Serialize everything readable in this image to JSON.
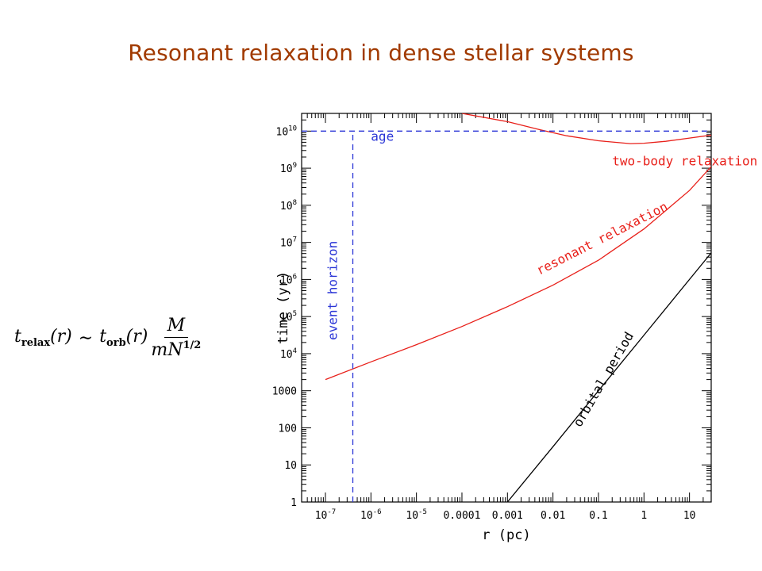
{
  "slide": {
    "title": "Resonant relaxation in dense stellar systems"
  },
  "formula": {
    "lhs_var": "t",
    "lhs_sub": "relax",
    "lhs_arg": "(r)",
    "relation": "∼",
    "rhs_var": "t",
    "rhs_sub": "orb",
    "rhs_arg": "(r)",
    "numerator": "M",
    "denominator": "mN",
    "denominator_sup": "1/2"
  },
  "chart_data": {
    "type": "line",
    "xlabel": "r (pc)",
    "ylabel": "time (yr)",
    "xscale": "log",
    "yscale": "log",
    "xlim": [
      3e-08,
      30
    ],
    "ylim": [
      1,
      30000000000.0
    ],
    "x_ticks": [
      {
        "value": 1e-07,
        "label": "10",
        "exp": "-7"
      },
      {
        "value": 1e-06,
        "label": "10",
        "exp": "-6"
      },
      {
        "value": 1e-05,
        "label": "10",
        "exp": "-5"
      },
      {
        "value": 0.0001,
        "label": "0.0001",
        "exp": ""
      },
      {
        "value": 0.001,
        "label": "0.001",
        "exp": ""
      },
      {
        "value": 0.01,
        "label": "0.01",
        "exp": ""
      },
      {
        "value": 0.1,
        "label": "0.1",
        "exp": ""
      },
      {
        "value": 1,
        "label": "1",
        "exp": ""
      },
      {
        "value": 10,
        "label": "10",
        "exp": ""
      }
    ],
    "y_ticks": [
      {
        "value": 1,
        "label": "1",
        "exp": ""
      },
      {
        "value": 10,
        "label": "10",
        "exp": ""
      },
      {
        "value": 100,
        "label": "100",
        "exp": ""
      },
      {
        "value": 1000,
        "label": "1000",
        "exp": ""
      },
      {
        "value": 10000.0,
        "label": "10",
        "exp": "4"
      },
      {
        "value": 100000.0,
        "label": "10",
        "exp": "5"
      },
      {
        "value": 1000000.0,
        "label": "10",
        "exp": "6"
      },
      {
        "value": 10000000.0,
        "label": "10",
        "exp": "7"
      },
      {
        "value": 100000000.0,
        "label": "10",
        "exp": "8"
      },
      {
        "value": 1000000000.0,
        "label": "10",
        "exp": "9"
      },
      {
        "value": 10000000000.0,
        "label": "10",
        "exp": "10"
      }
    ],
    "series": [
      {
        "name": "two-body relaxation",
        "color": "#e8201a",
        "dash": "solid",
        "x": [
          0.0001,
          0.001,
          0.005,
          0.02,
          0.1,
          0.5,
          1,
          3,
          10,
          30
        ],
        "y": [
          30000000000.0,
          18000000000.0,
          11000000000.0,
          7500000000.0,
          5500000000.0,
          4600000000.0,
          4700000000.0,
          5300000000.0,
          6500000000.0,
          7800000000.0
        ]
      },
      {
        "name": "resonant relaxation",
        "color": "#e8201a",
        "dash": "solid",
        "x": [
          1e-07,
          1e-06,
          1e-05,
          0.0001,
          0.001,
          0.01,
          0.1,
          1,
          10,
          30
        ],
        "y": [
          2000,
          6000,
          17500,
          54000,
          185000,
          700000,
          3300000,
          23000000,
          250000000,
          1100000000.0
        ]
      },
      {
        "name": "orbital period",
        "color": "#000000",
        "dash": "solid",
        "x": [
          0.001,
          0.01,
          0.1,
          1,
          10,
          30
        ],
        "y": [
          1,
          31,
          1000,
          31600,
          1000000,
          5200000
        ]
      },
      {
        "name": "age",
        "color": "#2a35d6",
        "dash": "dashed",
        "x": [
          3e-08,
          30
        ],
        "y": [
          10000000000.0,
          10000000000.0
        ]
      },
      {
        "name": "event horizon",
        "color": "#2a35d6",
        "dash": "dashed",
        "x": [
          4e-07,
          4e-07
        ],
        "y": [
          1,
          10000000000.0
        ]
      }
    ],
    "annotations": [
      {
        "text": "age",
        "color": "#2a35d6",
        "x": 1e-06,
        "y": 5500000000.0,
        "rotation": 0
      },
      {
        "text": "two-body relaxation",
        "color": "#e8201a",
        "x": 0.2,
        "y": 1200000000.0,
        "rotation": 0
      },
      {
        "text": "resonant relaxation",
        "color": "#e8201a",
        "x": 0.005,
        "y": 1300000.0,
        "rotation": -27
      },
      {
        "text": "event horizon",
        "color": "#2a35d6",
        "x": 1.8e-07,
        "y": 23000.0,
        "rotation": -90
      },
      {
        "text": "orbital period",
        "color": "#000000",
        "x": 0.04,
        "y": 100,
        "rotation": -60
      }
    ],
    "grid": false
  }
}
